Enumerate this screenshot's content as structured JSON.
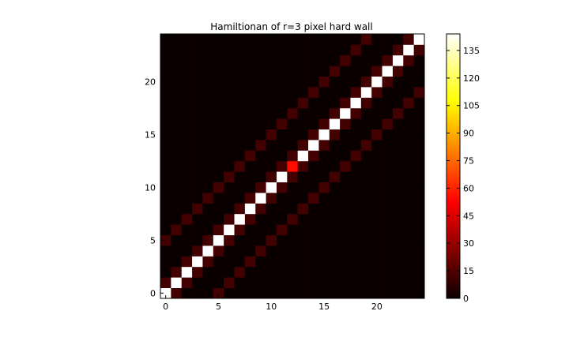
{
  "chart_data": {
    "type": "heatmap",
    "title": "Hamiltionan of r=3 pixel hard wall",
    "xlabel": "",
    "ylabel": "",
    "n": 25,
    "xlim": [
      -0.5,
      24.5
    ],
    "ylim": [
      -0.5,
      24.5
    ],
    "origin": "lower",
    "x_ticks": [
      0,
      5,
      10,
      15,
      20
    ],
    "y_ticks": [
      0,
      5,
      10,
      15,
      20
    ],
    "colormap": "hot",
    "colorbar": {
      "vmin": 0,
      "vmax": 144,
      "ticks": [
        0,
        15,
        30,
        45,
        60,
        75,
        90,
        105,
        120,
        135
      ]
    },
    "background_value": 0,
    "diagonal_value": 144,
    "diagonal_overrides": [
      {
        "i": 12,
        "value": 55
      }
    ],
    "neighbor_value": 12,
    "neighbor_offsets": [
      1,
      -1,
      5,
      -5
    ],
    "wall_rows": [
      0,
      5,
      6,
      9,
      11,
      19,
      24
    ],
    "wall_off_diagonal": "neighbor couplings to/from wall rows shown as lighter red (about 12)"
  },
  "colors": {
    "background": "#ffffff",
    "axes_frame": "#000000",
    "text": "#000000"
  }
}
